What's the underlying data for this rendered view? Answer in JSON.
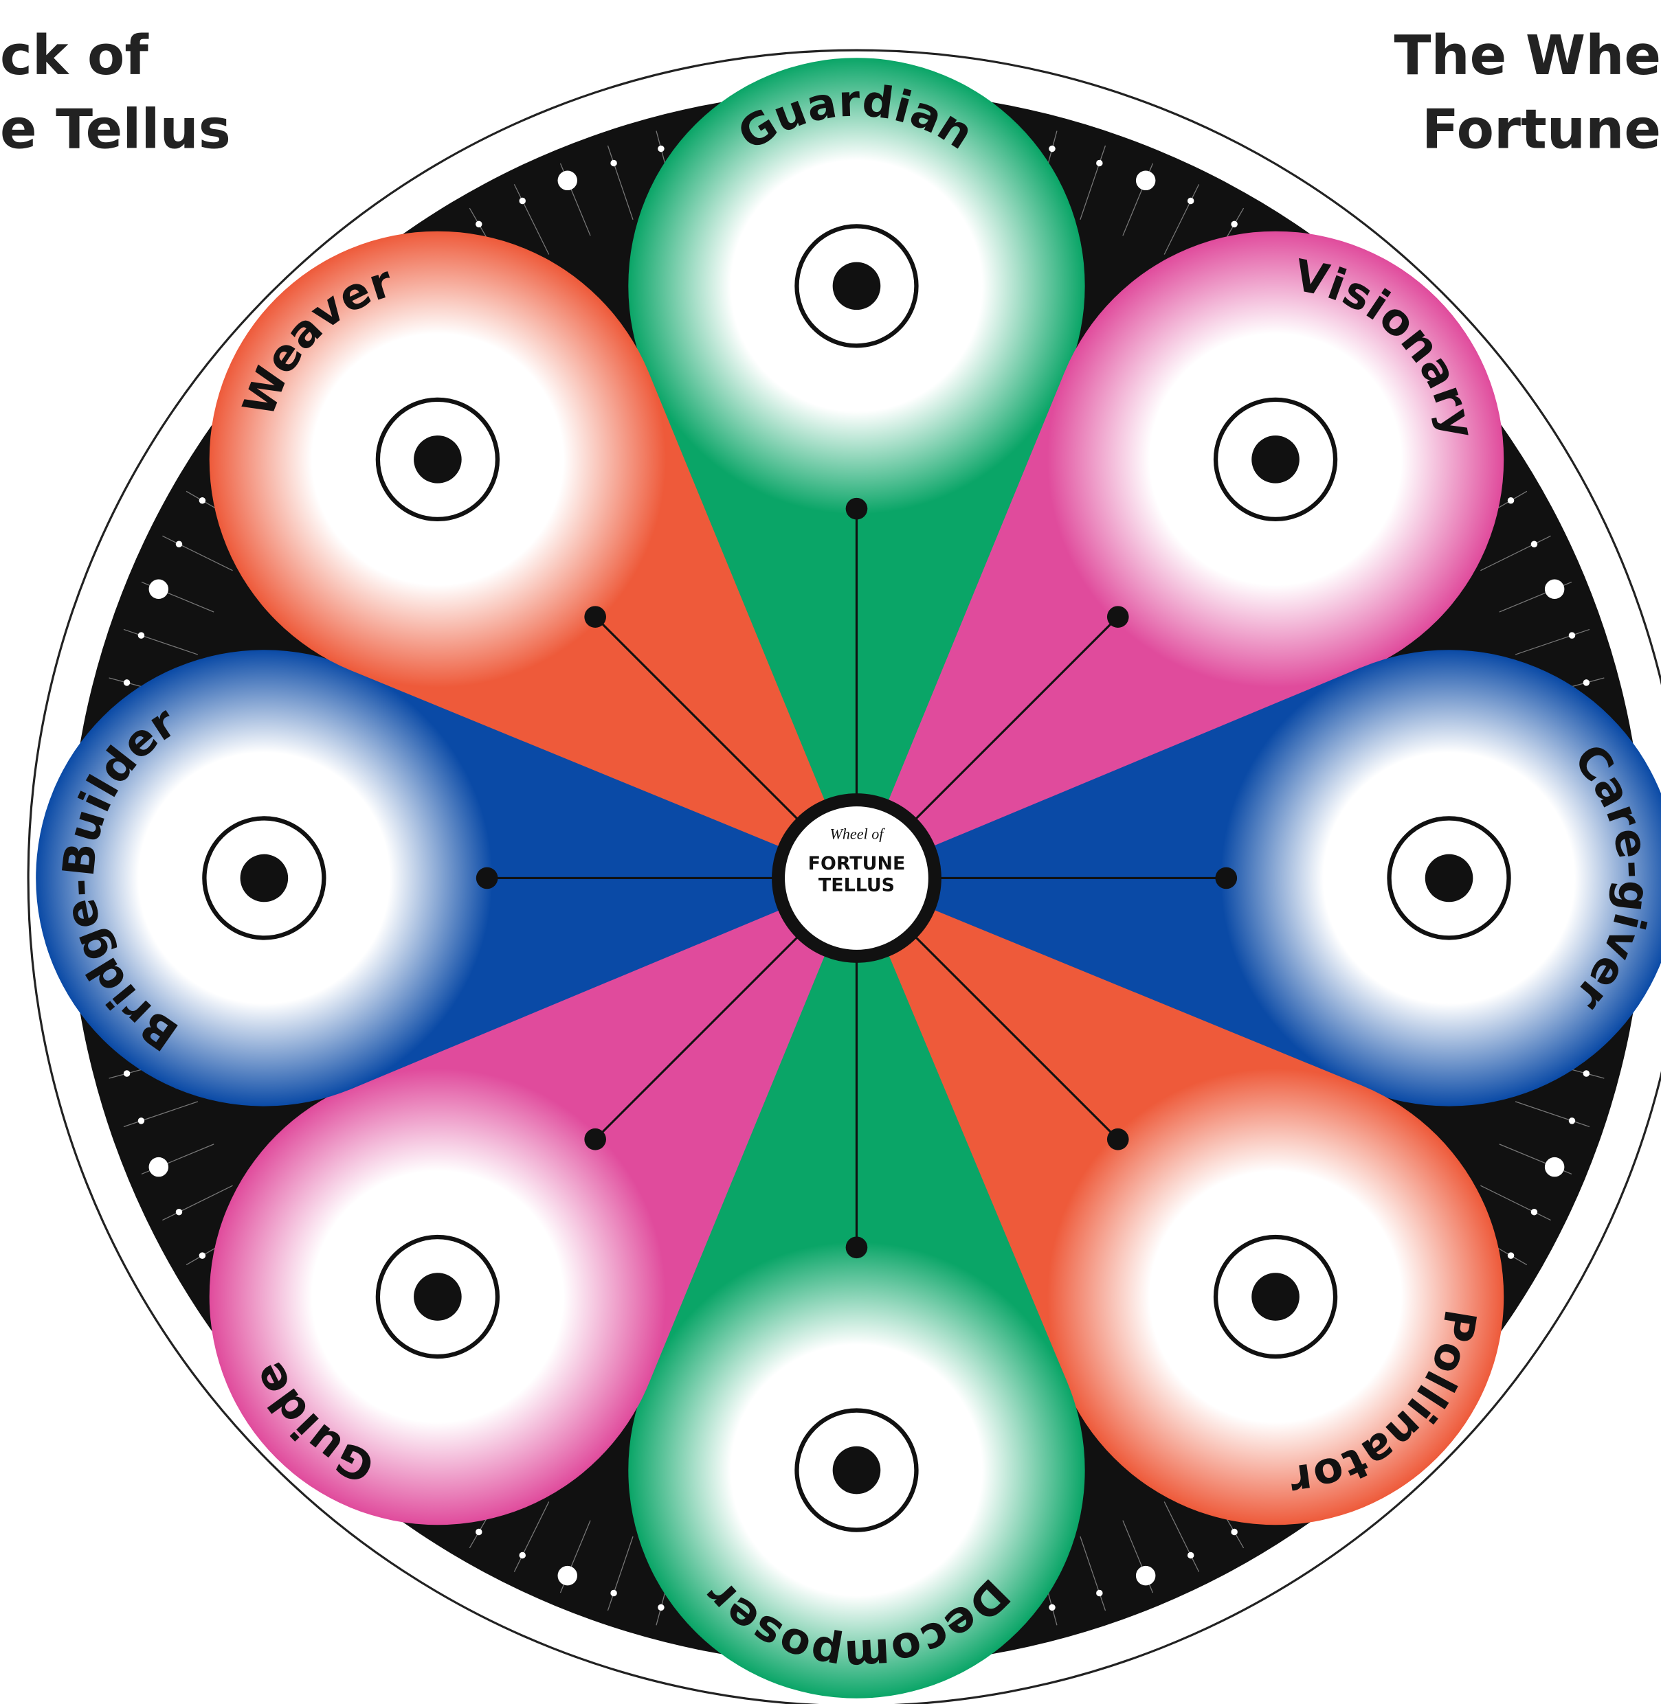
{
  "header": {
    "left_title": [
      "ck of",
      "e Tellus"
    ],
    "right_title": [
      "The Whe",
      "Fortune"
    ]
  },
  "center": {
    "small": "Wheel of",
    "lines": [
      "FORTUNE",
      "TELLUS"
    ]
  },
  "petals": [
    {
      "label": "Guardian"
    },
    {
      "label": "Visionary"
    },
    {
      "label": "Care-giver"
    },
    {
      "label": "Pollinator"
    },
    {
      "label": "Decomposer"
    },
    {
      "label": "Guide"
    },
    {
      "label": "Bridge-Builder"
    },
    {
      "label": "Weaver"
    }
  ]
}
